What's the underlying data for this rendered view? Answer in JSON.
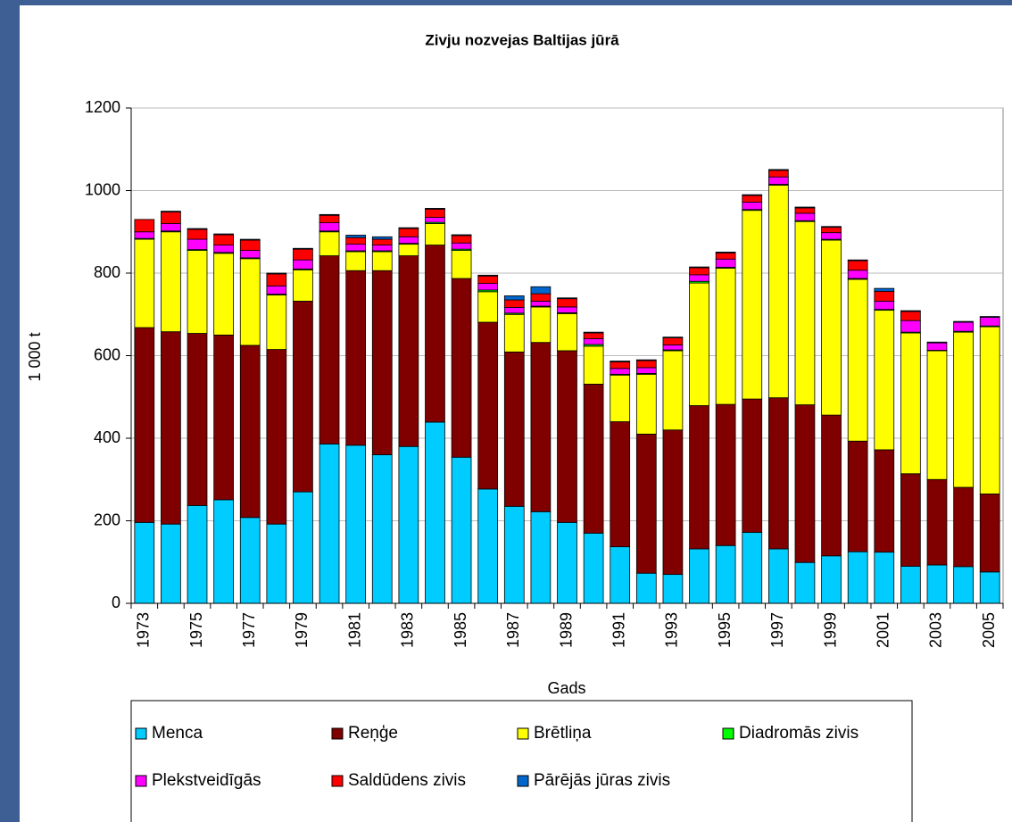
{
  "chart_data": {
    "type": "stacked-bar",
    "title": "Zivju nozvejas Baltijas jūrā",
    "x_label": "Gads",
    "y_label": "1 000 t",
    "categories": [
      "1973",
      null,
      "1975",
      null,
      "1977",
      null,
      "1979",
      null,
      "1981",
      null,
      "1983",
      null,
      "1985",
      null,
      "1987",
      null,
      "1989",
      null,
      "1991",
      null,
      "1993",
      null,
      "1995",
      null,
      "1997",
      null,
      "1999",
      null,
      "2001",
      null,
      "2003",
      null,
      "2005"
    ],
    "ylim": [
      0,
      1200
    ],
    "yticks": [
      0,
      200,
      400,
      600,
      800,
      1000,
      1200
    ],
    "grid": true,
    "legend": "bottom",
    "series": [
      {
        "name": "Menca",
        "color": "#00ccff",
        "values": [
          196,
          192,
          237,
          251,
          208,
          192,
          270,
          386,
          383,
          360,
          380,
          439,
          354,
          277,
          235,
          222,
          196,
          170,
          137,
          73,
          70,
          132,
          140,
          172,
          132,
          99,
          115,
          125,
          124,
          90,
          93,
          89,
          76
        ]
      },
      {
        "name": "Reņģe",
        "color": "#800000",
        "values": [
          472,
          466,
          417,
          399,
          417,
          423,
          462,
          456,
          423,
          446,
          462,
          429,
          433,
          404,
          374,
          410,
          416,
          361,
          303,
          337,
          350,
          347,
          342,
          323,
          366,
          382,
          341,
          268,
          248,
          224,
          207,
          192,
          189
        ]
      },
      {
        "name": "Brētliņa",
        "color": "#ffff00",
        "values": [
          214,
          242,
          201,
          198,
          210,
          132,
          76,
          58,
          46,
          46,
          28,
          52,
          68,
          74,
          91,
          86,
          90,
          92,
          113,
          145,
          192,
          297,
          330,
          457,
          515,
          444,
          424,
          392,
          338,
          341,
          312,
          376,
          405
        ]
      },
      {
        "name": "Diadromās zivis",
        "color": "#00ff00",
        "values": [
          2,
          2,
          2,
          2,
          2,
          2,
          2,
          2,
          2,
          2,
          2,
          3,
          3,
          4,
          3,
          2,
          2,
          4,
          2,
          2,
          2,
          4,
          2,
          2,
          2,
          2,
          2,
          2,
          2,
          2,
          1,
          2,
          2
        ]
      },
      {
        "name": "Plekstveidīgās",
        "color": "#ff00ff",
        "values": [
          16,
          18,
          25,
          18,
          18,
          20,
          22,
          20,
          16,
          14,
          16,
          12,
          15,
          16,
          14,
          12,
          14,
          14,
          14,
          14,
          12,
          16,
          20,
          18,
          18,
          18,
          16,
          20,
          20,
          28,
          18,
          22,
          21
        ]
      },
      {
        "name": "Saldūdens zivis",
        "color": "#ff0000",
        "values": [
          30,
          28,
          24,
          25,
          25,
          29,
          26,
          18,
          16,
          14,
          20,
          20,
          18,
          18,
          18,
          18,
          20,
          14,
          16,
          17,
          17,
          17,
          15,
          16,
          16,
          13,
          13,
          23,
          24,
          22,
          0,
          0,
          0
        ]
      },
      {
        "name": "Pārējās jūras zivis",
        "color": "#0066cc",
        "values": [
          0,
          2,
          2,
          2,
          2,
          2,
          2,
          2,
          6,
          6,
          2,
          2,
          2,
          2,
          10,
          17,
          2,
          2,
          2,
          2,
          2,
          2,
          2,
          2,
          2,
          2,
          2,
          2,
          7,
          2,
          2,
          2,
          2
        ]
      }
    ]
  }
}
